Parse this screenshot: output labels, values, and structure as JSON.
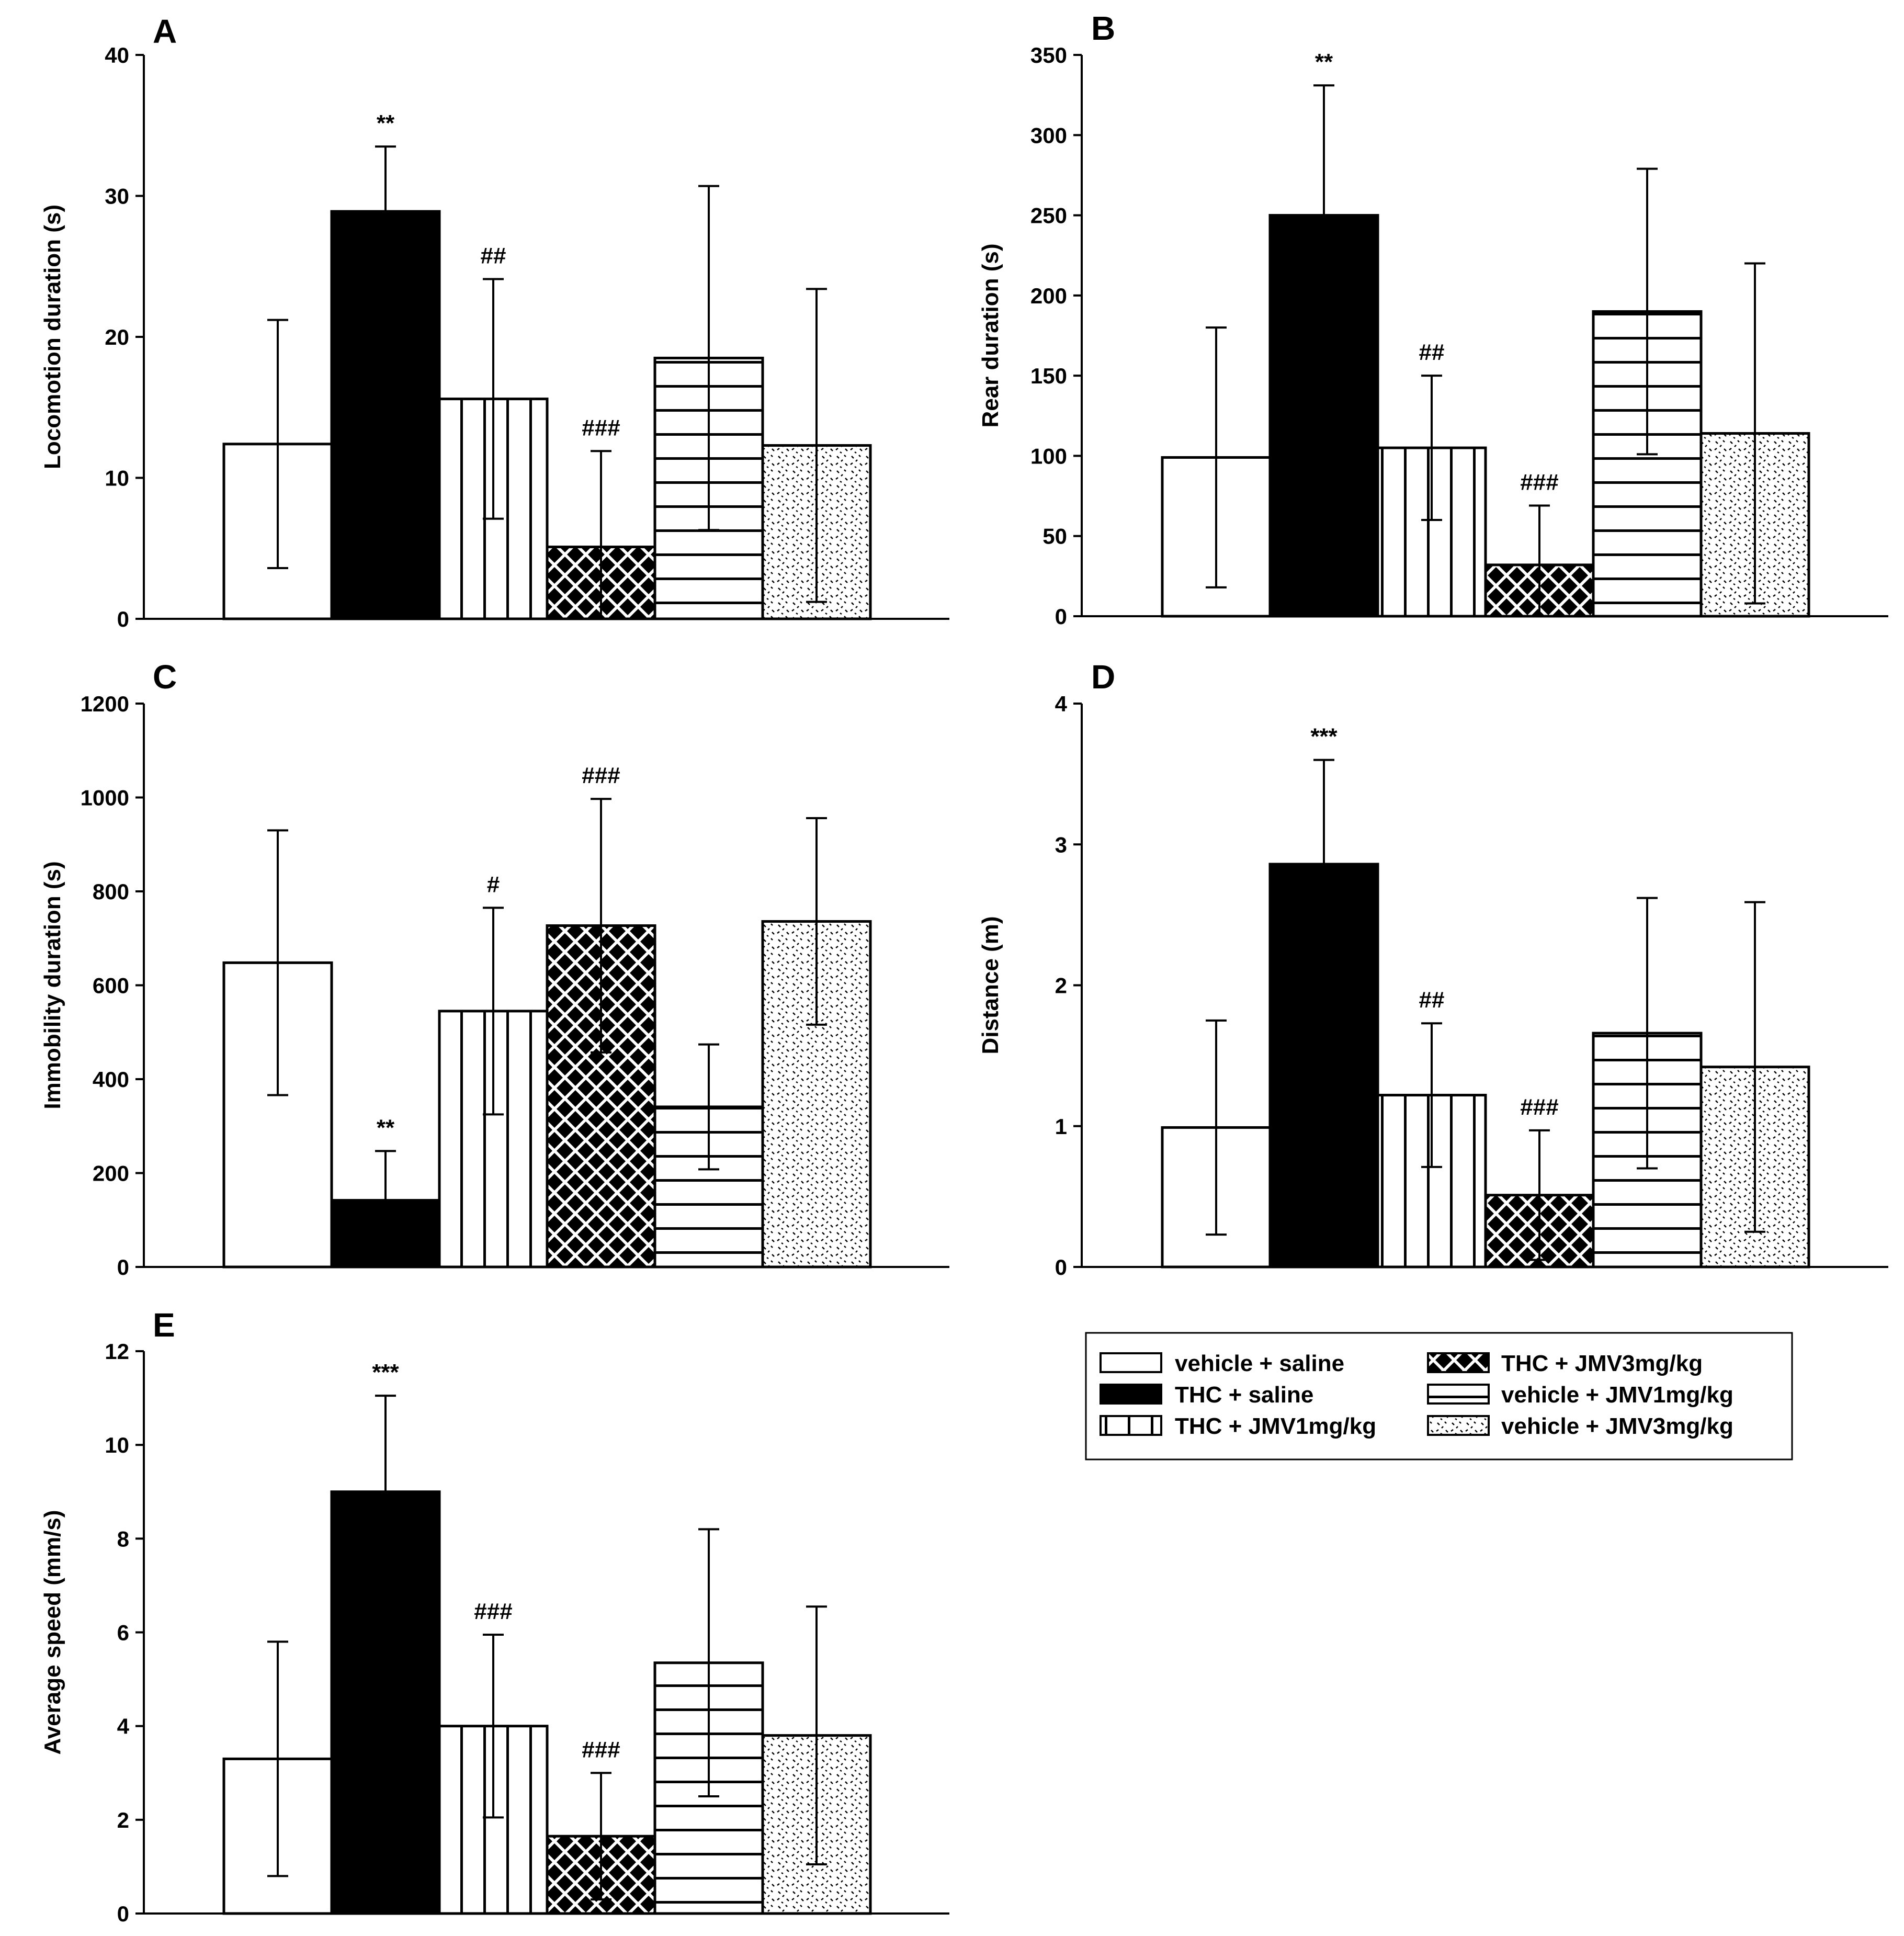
{
  "chart_data": [
    {
      "type": "bar",
      "panel": "A",
      "ylabel": "Locomotion duration (s)",
      "ylim": [
        0,
        40
      ],
      "yticks": [
        0,
        10,
        20,
        30,
        40
      ],
      "categories": [
        "vehicle + saline",
        "THC + saline",
        "THC + JMV1mg/kg",
        "THC + JMV3mg/kg",
        "vehicle + JMV1mg/kg",
        "vehicle + JMV3mg/kg"
      ],
      "values": [
        12.4,
        28.9,
        15.6,
        5.1,
        18.5,
        12.3
      ],
      "errors": [
        8.8,
        4.6,
        8.5,
        6.8,
        12.2,
        11.1
      ],
      "annotations": [
        "",
        "**",
        "##",
        "###",
        "",
        ""
      ]
    },
    {
      "type": "bar",
      "panel": "B",
      "ylabel": "Rear duration (s)",
      "ylim": [
        0,
        350
      ],
      "yticks": [
        0,
        50,
        100,
        150,
        200,
        250,
        300,
        350
      ],
      "categories": [
        "vehicle + saline",
        "THC + saline",
        "THC + JMV1mg/kg",
        "THC + JMV3mg/kg",
        "vehicle + JMV1mg/kg",
        "vehicle + JMV3mg/kg"
      ],
      "values": [
        99,
        250,
        105,
        32,
        190,
        114
      ],
      "errors": [
        81,
        81,
        45,
        37,
        89,
        106
      ],
      "annotations": [
        "",
        "**",
        "##",
        "###",
        "",
        ""
      ]
    },
    {
      "type": "bar",
      "panel": "C",
      "ylabel": "Immobility duration (s)",
      "ylim": [
        0,
        1200
      ],
      "yticks": [
        0,
        200,
        400,
        600,
        800,
        1000,
        1200
      ],
      "categories": [
        "vehicle + saline",
        "THC + saline",
        "THC + JMV1mg/kg",
        "THC + JMV3mg/kg",
        "vehicle + JMV1mg/kg",
        "vehicle + JMV3mg/kg"
      ],
      "values": [
        648,
        142,
        545,
        727,
        341,
        736
      ],
      "errors": [
        282,
        105,
        220,
        270,
        133,
        220
      ],
      "annotations": [
        "",
        "**",
        "#",
        "###",
        "",
        ""
      ]
    },
    {
      "type": "bar",
      "panel": "D",
      "ylabel": "Distance (m)",
      "ylim": [
        0,
        4
      ],
      "yticks": [
        0,
        1,
        2,
        3,
        4
      ],
      "categories": [
        "vehicle + saline",
        "THC + saline",
        "THC + JMV1mg/kg",
        "THC + JMV3mg/kg",
        "vehicle + JMV1mg/kg",
        "vehicle + JMV3mg/kg"
      ],
      "values": [
        0.99,
        2.86,
        1.22,
        0.51,
        1.66,
        1.42
      ],
      "errors": [
        0.76,
        0.74,
        0.51,
        0.46,
        0.96,
        1.17
      ],
      "annotations": [
        "",
        "***",
        "##",
        "###",
        "",
        ""
      ]
    },
    {
      "type": "bar",
      "panel": "E",
      "ylabel": "Average speed (mm/s)",
      "ylim": [
        0,
        12
      ],
      "yticks": [
        0,
        2,
        4,
        6,
        8,
        10,
        12
      ],
      "categories": [
        "vehicle + saline",
        "THC + saline",
        "THC + JMV1mg/kg",
        "THC + JMV3mg/kg",
        "vehicle + JMV1mg/kg",
        "vehicle + JMV3mg/kg"
      ],
      "values": [
        3.3,
        9.0,
        4.0,
        1.65,
        5.35,
        3.8
      ],
      "errors": [
        2.5,
        2.05,
        1.95,
        1.35,
        2.85,
        2.75
      ],
      "annotations": [
        "",
        "***",
        "###",
        "###",
        "",
        ""
      ]
    }
  ],
  "legend": {
    "entries": [
      {
        "label": "vehicle + saline",
        "pattern": "open"
      },
      {
        "label": "THC + saline",
        "pattern": "solid"
      },
      {
        "label": "THC + JMV1mg/kg",
        "pattern": "vlines"
      },
      {
        "label": "THC + JMV3mg/kg",
        "pattern": "checker"
      },
      {
        "label": "vehicle + JMV1mg/kg",
        "pattern": "hlines"
      },
      {
        "label": "vehicle + JMV3mg/kg",
        "pattern": "dots"
      }
    ]
  }
}
